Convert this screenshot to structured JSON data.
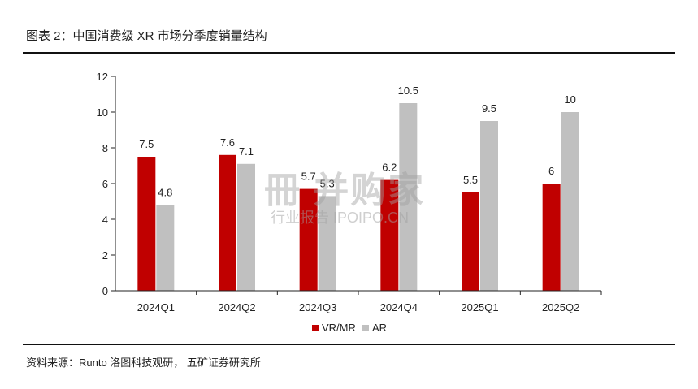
{
  "figure": {
    "title": "图表 2：中国消费级 XR 市场分季度销量结构",
    "source": "资料来源：Runto 洛图科技观研，  五矿证券研究所"
  },
  "watermark": {
    "main": "冊 并购家",
    "sub": "行业报告 IPOIPO.CN"
  },
  "colors": {
    "vr_mr": "#c00000",
    "ar": "#c0c0c0",
    "axis": "#222222",
    "rule": "#111111"
  },
  "chart_data": {
    "type": "bar",
    "categories": [
      "2024Q1",
      "2024Q2",
      "2024Q3",
      "2024Q4",
      "2025Q1",
      "2025Q2"
    ],
    "series": [
      {
        "name": "VR/MR",
        "values": [
          7.5,
          7.6,
          5.7,
          6.2,
          5.5,
          6
        ]
      },
      {
        "name": "AR",
        "values": [
          4.8,
          7.1,
          5.3,
          10.5,
          9.5,
          10
        ]
      }
    ],
    "data_labels": {
      "vr_mr": [
        "7.5",
        "7.6",
        "5.7",
        "6.2",
        "5.5",
        "6"
      ],
      "ar": [
        "4.8",
        "7.1",
        "5.3",
        "10.5",
        "9.5",
        "10"
      ]
    },
    "y_ticks": [
      0,
      2,
      4,
      6,
      8,
      10,
      12
    ],
    "y_tick_labels": [
      "0",
      "2",
      "4",
      "6",
      "8",
      "10",
      "12"
    ],
    "ylim": [
      0,
      12
    ],
    "legend": {
      "position": "bottom-center",
      "items": [
        "VR/MR",
        "AR"
      ]
    },
    "grid": false
  }
}
